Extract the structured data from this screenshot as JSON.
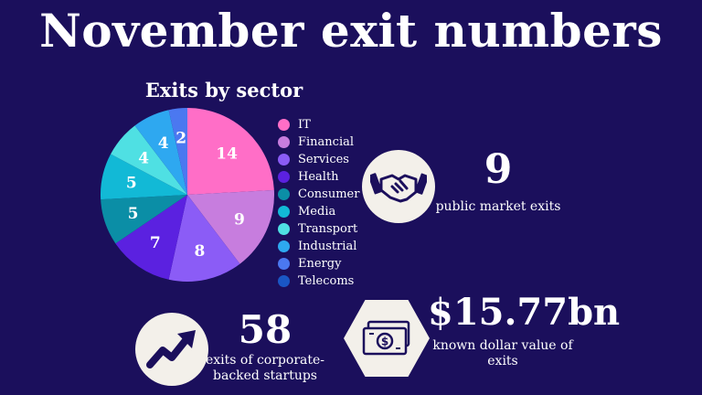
{
  "header": {
    "title": "November exit numbers"
  },
  "chart_data": {
    "type": "pie",
    "title": "Exits by sector",
    "legend_position": "right",
    "categories": [
      "IT",
      "Financial",
      "Services",
      "Health",
      "Consumer",
      "Media",
      "Transport",
      "Industrial",
      "Energy",
      "Telecoms"
    ],
    "values": [
      14,
      9,
      8,
      7,
      5,
      5,
      4,
      4,
      2,
      0
    ],
    "colors": [
      "#ff6ec7",
      "#c77dde",
      "#8b5cf6",
      "#5b21e0",
      "#0b8ea6",
      "#12b9d6",
      "#4fe0e3",
      "#2ea8f0",
      "#4b78f0",
      "#1a56c4"
    ]
  },
  "stats": {
    "public": {
      "value": "9",
      "label": "public market exits",
      "icon": "handshake-icon"
    },
    "corporate": {
      "value": "58",
      "label_line1": "exits of corporate-",
      "label_line2": "backed startups",
      "icon": "trend-up-icon"
    },
    "dollar": {
      "value": "$15.77bn",
      "label_line1": "known dollar value of",
      "label_line2": "exits",
      "icon": "cash-icon"
    }
  }
}
